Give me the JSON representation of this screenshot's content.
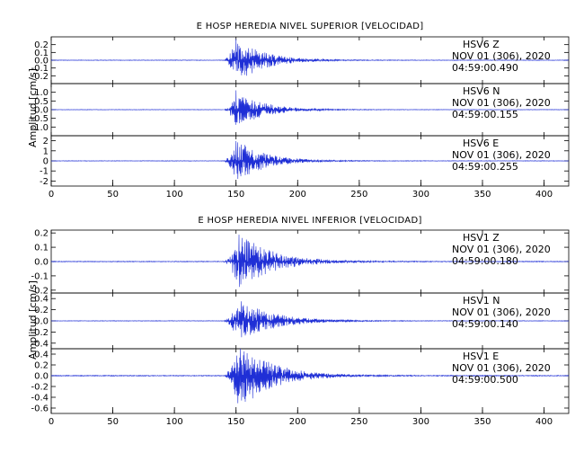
{
  "chart_data": [
    {
      "type": "line",
      "title": "E HOSP HEREDIA NIVEL SUPERIOR [VELOCIDAD]",
      "ylabel": "Amplitud [cm/s]",
      "xlim": [
        0,
        420
      ],
      "xticks": [
        0,
        50,
        100,
        150,
        200,
        250,
        300,
        350,
        400
      ],
      "grid": false,
      "event": {
        "onset_s": 140,
        "peak_s": 150,
        "decay_end_s": 240
      },
      "traces": [
        {
          "station": "HSV6",
          "component": "Z",
          "date": "NOV 01 (306), 2020",
          "time": "04:59:00.490",
          "ylim": [
            -0.3,
            0.3
          ],
          "yticks": [
            "0.2",
            "0.1",
            "0.0",
            "-0.1",
            "-0.2"
          ],
          "ytick_values": [
            0.2,
            0.1,
            0.0,
            -0.1,
            -0.2
          ],
          "peak_amplitude": 0.3
        },
        {
          "station": "HSV6",
          "component": "N",
          "date": "NOV 01 (306), 2020",
          "time": "04:59:00.155",
          "ylim": [
            -1.5,
            1.5
          ],
          "yticks": [
            "1.0",
            "0.5",
            "0.0",
            "-0.5",
            "-1.0"
          ],
          "ytick_values": [
            1.0,
            0.5,
            0.0,
            -0.5,
            -1.0
          ],
          "peak_amplitude": 1.1
        },
        {
          "station": "HSV6",
          "component": "E",
          "date": "NOV 01 (306), 2020",
          "time": "04:59:00.255",
          "ylim": [
            -2.5,
            2.5
          ],
          "yticks": [
            "2",
            "1",
            "0",
            "-1",
            "-2"
          ],
          "ytick_values": [
            2,
            1,
            0,
            -1,
            -2
          ],
          "peak_amplitude": 2.2
        }
      ]
    },
    {
      "type": "line",
      "title": "E HOSP HEREDIA NIVEL INFERIOR [VELOCIDAD]",
      "ylabel": "Amplitud [cm/s]",
      "xlim": [
        0,
        420
      ],
      "xticks": [
        0,
        50,
        100,
        150,
        200,
        250,
        300,
        350,
        400
      ],
      "grid": false,
      "event": {
        "onset_s": 140,
        "peak_s": 152,
        "decay_end_s": 260
      },
      "traces": [
        {
          "station": "HSV1",
          "component": "Z",
          "date": "NOV 01 (306), 2020",
          "time": "04:59:00.180",
          "ylim": [
            -0.22,
            0.22
          ],
          "yticks": [
            "0.2",
            "0.1",
            "0.0",
            "-0.1",
            "-0.2"
          ],
          "ytick_values": [
            0.2,
            0.1,
            0.0,
            -0.1,
            -0.2
          ],
          "peak_amplitude": 0.21
        },
        {
          "station": "HSV1",
          "component": "N",
          "date": "NOV 01 (306), 2020",
          "time": "04:59:00.140",
          "ylim": [
            -0.5,
            0.5
          ],
          "yticks": [
            "0.4",
            "0.2",
            "0.0",
            "-0.2",
            "-0.4"
          ],
          "ytick_values": [
            0.4,
            0.2,
            0.0,
            -0.2,
            -0.4
          ],
          "peak_amplitude": 0.4
        },
        {
          "station": "HSV1",
          "component": "E",
          "date": "NOV 01 (306), 2020",
          "time": "04:59:00.500",
          "ylim": [
            -0.7,
            0.5
          ],
          "yticks": [
            "0.4",
            "0.2",
            "0.0",
            "-0.2",
            "-0.4",
            "-0.6"
          ],
          "ytick_values": [
            0.4,
            0.2,
            0.0,
            -0.2,
            -0.4,
            -0.6
          ],
          "peak_amplitude": 0.65
        }
      ]
    }
  ],
  "colors": {
    "trace": "#1f2fd6",
    "axis": "#000000",
    "background": "#ffffff"
  }
}
